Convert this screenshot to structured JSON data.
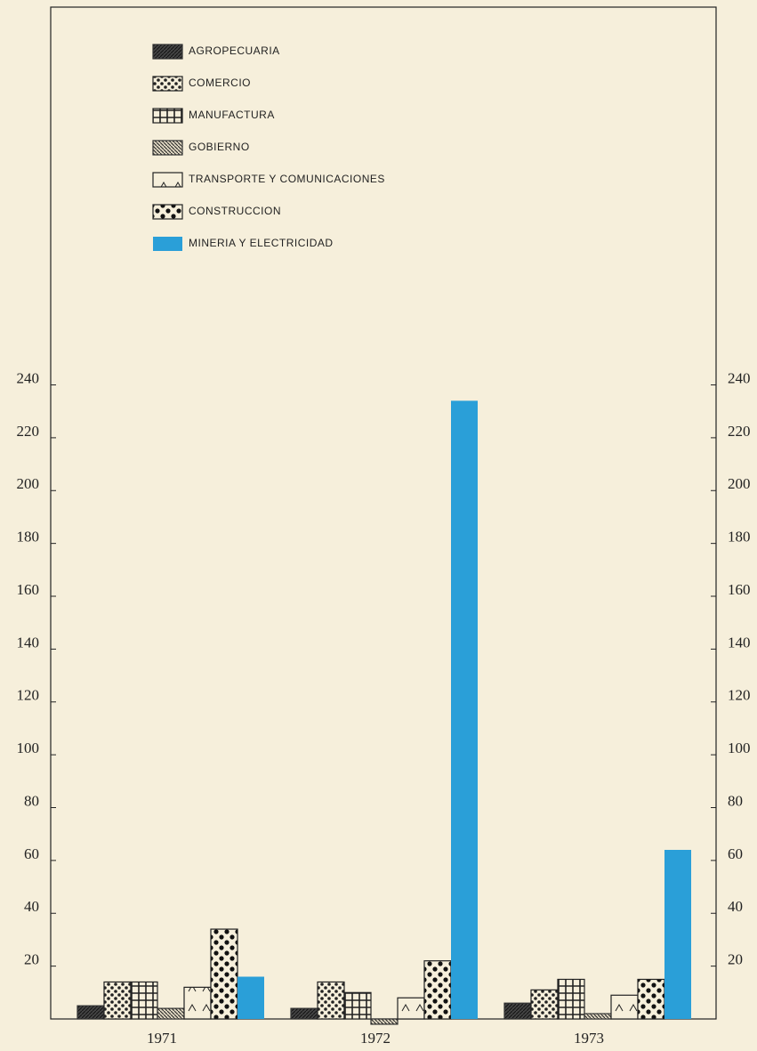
{
  "chart_data": {
    "type": "bar",
    "categories": [
      "1971",
      "1972",
      "1973"
    ],
    "series": [
      {
        "name": "AGROPECUARIA",
        "color": "#333333",
        "values": [
          5,
          4,
          6
        ]
      },
      {
        "name": "COMERCIO",
        "color": "#222222",
        "values": [
          14,
          14,
          11
        ]
      },
      {
        "name": "MANUFACTURA",
        "color": "#222222",
        "values": [
          14,
          10,
          15
        ]
      },
      {
        "name": "GOBIERNO",
        "color": "#333333",
        "values": [
          4,
          -2,
          2
        ]
      },
      {
        "name": "TRANSPORTE Y COMUNICACIONES",
        "color": "#222222",
        "values": [
          12,
          8,
          9
        ]
      },
      {
        "name": "CONSTRUCCION",
        "color": "#222222",
        "values": [
          34,
          22,
          15
        ]
      },
      {
        "name": "MINERIA Y ELECTRICIDAD",
        "color": "#2a9fd8",
        "values": [
          16,
          234,
          64
        ]
      }
    ],
    "ylim": [
      0,
      383
    ],
    "yticks": [
      20,
      40,
      60,
      80,
      100,
      120,
      140,
      160,
      180,
      200,
      220,
      240
    ]
  }
}
